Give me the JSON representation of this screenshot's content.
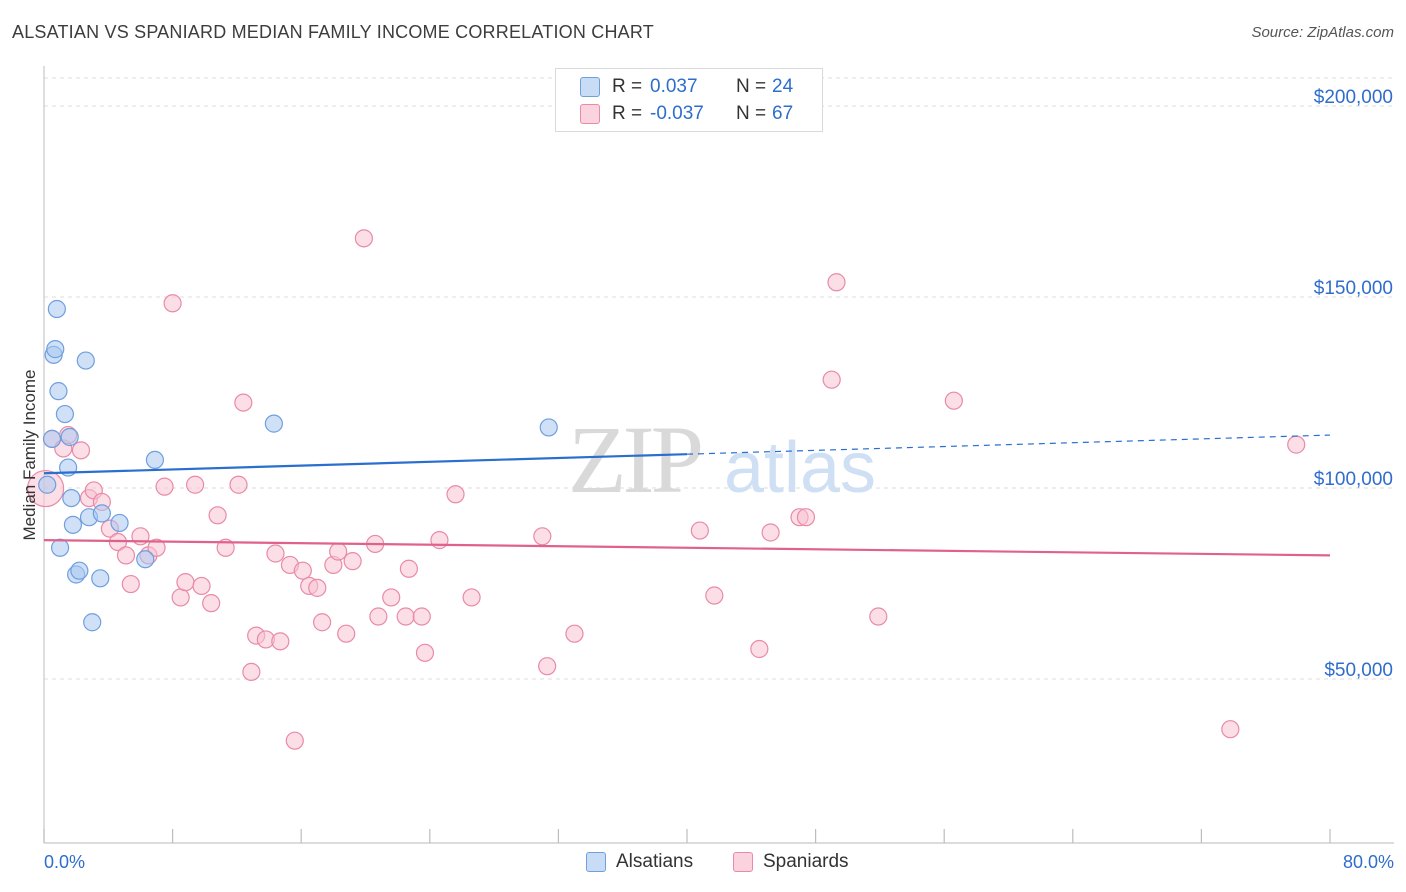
{
  "title": "ALSATIAN VS SPANIARD MEDIAN FAMILY INCOME CORRELATION CHART",
  "source": "Source: ZipAtlas.com",
  "watermark": {
    "zip": "ZIP",
    "atlas": "atlas"
  },
  "legend": {
    "series": [
      {
        "name": "Alsatians",
        "r_label": "R =",
        "r_value": "0.037",
        "n_label": "N =",
        "n_value": "24",
        "color": "#a9c8f0",
        "stroke": "#6f9fde"
      },
      {
        "name": "Spaniards",
        "r_label": "R =",
        "r_value": "-0.037",
        "n_label": "N =",
        "n_value": "67",
        "color": "#f8c3d2",
        "stroke": "#e98aa8"
      }
    ]
  },
  "chart_data": {
    "type": "scatter",
    "title": "ALSATIAN VS SPANIARD MEDIAN FAMILY INCOME CORRELATION CHART",
    "xlabel": "",
    "ylabel": "Median Family Income",
    "xlim": [
      0,
      80
    ],
    "ylim": [
      0,
      210000
    ],
    "x_tick_labels": [
      "0.0%",
      "80.0%"
    ],
    "y_ticks": [
      50000,
      100000,
      150000,
      200000
    ],
    "y_tick_labels": [
      "$50,000",
      "$100,000",
      "$150,000",
      "$200,000"
    ],
    "grid": true,
    "series": [
      {
        "name": "Alsatians",
        "color": "#6f9fde",
        "fill": "#a9c8f0",
        "trend_color": "#2a6fcf",
        "trend": {
          "x0": 0,
          "y0": 101500,
          "x1": 40,
          "y1": 106500,
          "dashed_to_x": 80,
          "dashed_to_y": 111500
        },
        "points": [
          [
            0.2,
            98500
          ],
          [
            0.5,
            110500
          ],
          [
            0.6,
            132500
          ],
          [
            0.7,
            134000
          ],
          [
            0.8,
            144500
          ],
          [
            0.9,
            123000
          ],
          [
            1.0,
            82000
          ],
          [
            1.3,
            117000
          ],
          [
            1.5,
            103000
          ],
          [
            1.6,
            111000
          ],
          [
            1.7,
            95000
          ],
          [
            1.8,
            88000
          ],
          [
            2.0,
            75000
          ],
          [
            2.2,
            76000
          ],
          [
            2.6,
            131000
          ],
          [
            2.8,
            90000
          ],
          [
            3.0,
            62500
          ],
          [
            3.5,
            74000
          ],
          [
            3.6,
            91000
          ],
          [
            4.7,
            88500
          ],
          [
            6.3,
            79000
          ],
          [
            6.9,
            105000
          ],
          [
            14.3,
            114500
          ],
          [
            31.4,
            113500
          ]
        ]
      },
      {
        "name": "Spaniards",
        "color": "#e98aa8",
        "fill": "#f8c3d2",
        "trend_color": "#e0628c",
        "trend": {
          "x0": 0,
          "y0": 84000,
          "x1": 80,
          "y1": 80000
        },
        "points": [
          [
            0.1,
            97500
          ],
          [
            0.5,
            110500
          ],
          [
            1.2,
            108000
          ],
          [
            1.5,
            111500
          ],
          [
            2.3,
            107500
          ],
          [
            2.8,
            95000
          ],
          [
            3.1,
            97000
          ],
          [
            3.6,
            94000
          ],
          [
            4.1,
            87000
          ],
          [
            4.6,
            83500
          ],
          [
            5.1,
            80000
          ],
          [
            5.4,
            72500
          ],
          [
            6.0,
            85000
          ],
          [
            6.5,
            80000
          ],
          [
            7.0,
            82000
          ],
          [
            7.5,
            98000
          ],
          [
            8.0,
            146000
          ],
          [
            8.5,
            69000
          ],
          [
            8.8,
            73000
          ],
          [
            9.4,
            98500
          ],
          [
            9.8,
            72000
          ],
          [
            10.4,
            67500
          ],
          [
            10.8,
            90500
          ],
          [
            11.3,
            82000
          ],
          [
            12.1,
            98500
          ],
          [
            12.4,
            120000
          ],
          [
            12.9,
            49500
          ],
          [
            13.2,
            59000
          ],
          [
            13.8,
            58000
          ],
          [
            14.4,
            80500
          ],
          [
            14.7,
            57500
          ],
          [
            15.3,
            77500
          ],
          [
            15.6,
            31500
          ],
          [
            16.1,
            76000
          ],
          [
            16.5,
            72000
          ],
          [
            17.0,
            71500
          ],
          [
            17.3,
            62500
          ],
          [
            18.0,
            77500
          ],
          [
            18.3,
            81000
          ],
          [
            18.8,
            59500
          ],
          [
            19.2,
            78500
          ],
          [
            19.9,
            163000
          ],
          [
            20.6,
            83000
          ],
          [
            20.8,
            64000
          ],
          [
            21.6,
            69000
          ],
          [
            22.5,
            64000
          ],
          [
            22.7,
            76500
          ],
          [
            23.5,
            64000
          ],
          [
            23.7,
            54500
          ],
          [
            24.6,
            84000
          ],
          [
            25.6,
            96000
          ],
          [
            26.6,
            69000
          ],
          [
            31.0,
            85000
          ],
          [
            31.3,
            51000
          ],
          [
            33.0,
            59500
          ],
          [
            40.8,
            86500
          ],
          [
            41.7,
            69500
          ],
          [
            44.5,
            55500
          ],
          [
            45.2,
            86000
          ],
          [
            47.0,
            90000
          ],
          [
            47.4,
            90000
          ],
          [
            49.0,
            126000
          ],
          [
            49.3,
            151500
          ],
          [
            51.9,
            64000
          ],
          [
            56.6,
            120500
          ],
          [
            73.8,
            34500
          ],
          [
            77.9,
            109000
          ]
        ]
      }
    ]
  }
}
